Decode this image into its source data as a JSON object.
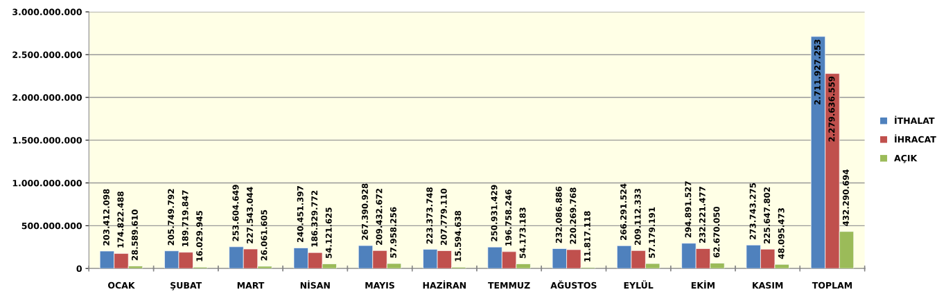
{
  "chart_data": {
    "type": "bar",
    "categories": [
      "OCAK",
      "ŞUBAT",
      "MART",
      "NİSAN",
      "MAYIS",
      "HAZİRAN",
      "TEMMUZ",
      "AĞUSTOS",
      "EYLÜL",
      "EKİM",
      "KASIM",
      "TOPLAM"
    ],
    "series": [
      {
        "name": "İTHALAT",
        "color": "#4f81bd",
        "values": [
          203412098,
          205749792,
          253604649,
          240451397,
          267390928,
          223373748,
          250931429,
          232086886,
          266291524,
          294891527,
          273743275,
          2711927253
        ],
        "value_labels": [
          "203.412.098",
          "205.749.792",
          "253.604.649",
          "240.451.397",
          "267.390.928",
          "223.373.748",
          "250.931.429",
          "232.086.886",
          "266.291.524",
          "294.891.527",
          "273.743.275",
          "2.711.927.253"
        ]
      },
      {
        "name": "İHRACAT",
        "color": "#c0504d",
        "values": [
          174822488,
          189719847,
          227543044,
          186329772,
          209432672,
          207779110,
          196758246,
          220269768,
          209112333,
          232221477,
          225647802,
          2279636559
        ],
        "value_labels": [
          "174.822.488",
          "189.719.847",
          "227.543.044",
          "186.329.772",
          "209.432.672",
          "207.779.110",
          "196.758.246",
          "220.269.768",
          "209.112.333",
          "232.221.477",
          "225.647.802",
          "2.279.636.559"
        ]
      },
      {
        "name": "AÇIK",
        "color": "#9bbb59",
        "values": [
          28589610,
          16029945,
          26061605,
          54121625,
          57958256,
          15594638,
          54173183,
          11817118,
          57179191,
          62670050,
          48095473,
          432290694
        ],
        "value_labels": [
          "28.589.610",
          "16.029.945",
          "26.061.605",
          "54.121.625",
          "57.958.256",
          "15.594.638",
          "54.173.183",
          "11.817.118",
          "57.179.191",
          "62.670.050",
          "48.095.473",
          "432.290.694"
        ]
      }
    ],
    "ylim": [
      0,
      3000000000
    ],
    "yticks": [
      0,
      {
        "value": 500000000,
        "label": "500.000.000"
      },
      {
        "value": 1000000000,
        "label": "1.000.000.000"
      },
      {
        "value": 1500000000,
        "label": "1.500.000.000"
      },
      {
        "value": 2000000000,
        "label": "2.000.000.000"
      },
      {
        "value": 2500000000,
        "label": "2.500.000.000"
      },
      {
        "value": 3000000000,
        "label": "3.000.000.000"
      }
    ],
    "grid": "y",
    "legend": "right"
  }
}
